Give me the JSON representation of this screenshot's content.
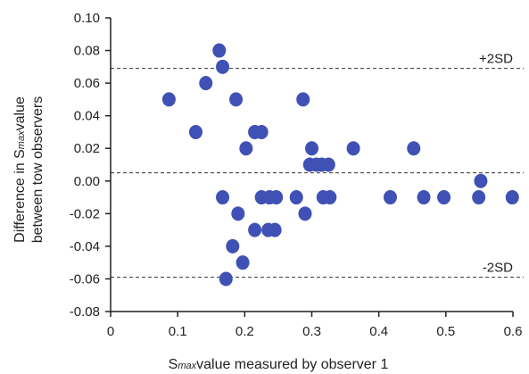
{
  "chart_data": {
    "type": "scatter",
    "title": "",
    "xlabel": {
      "prefix": "S",
      "sub": "max",
      "suffix": "value measured by observer 1"
    },
    "ylabel": {
      "line1_prefix": "Difference in S",
      "line1_sub": "max",
      "line1_suffix": "value",
      "line2": "between tow observers"
    },
    "xlim": [
      0,
      0.6
    ],
    "ylim": [
      -0.08,
      0.1
    ],
    "xticks": [
      "0",
      "0.1",
      "0.2",
      "0.3",
      "0.4",
      "0.5",
      "0.6"
    ],
    "yticks": [
      "0.10",
      "0.08",
      "0.06",
      "0.04",
      "0.02",
      "0.00",
      "-0.02",
      "-0.04",
      "-0.06",
      "-0.08"
    ],
    "marker_color": "#3f51b5",
    "grid": false,
    "reference_lines": [
      {
        "label": "+2SD",
        "y": 0.069
      },
      {
        "label": "",
        "y": 0.005
      },
      {
        "label": "-2SD",
        "y": -0.059
      }
    ],
    "points": [
      {
        "x": 0.087,
        "y": 0.05
      },
      {
        "x": 0.127,
        "y": 0.03
      },
      {
        "x": 0.142,
        "y": 0.06
      },
      {
        "x": 0.162,
        "y": 0.08
      },
      {
        "x": 0.167,
        "y": 0.07
      },
      {
        "x": 0.167,
        "y": -0.01
      },
      {
        "x": 0.172,
        "y": -0.06
      },
      {
        "x": 0.182,
        "y": -0.04
      },
      {
        "x": 0.187,
        "y": 0.05
      },
      {
        "x": 0.19,
        "y": -0.02
      },
      {
        "x": 0.197,
        "y": -0.05
      },
      {
        "x": 0.202,
        "y": 0.02
      },
      {
        "x": 0.215,
        "y": 0.03
      },
      {
        "x": 0.215,
        "y": -0.03
      },
      {
        "x": 0.225,
        "y": 0.03
      },
      {
        "x": 0.225,
        "y": -0.01
      },
      {
        "x": 0.235,
        "y": -0.03
      },
      {
        "x": 0.237,
        "y": -0.01
      },
      {
        "x": 0.245,
        "y": -0.03
      },
      {
        "x": 0.247,
        "y": -0.01
      },
      {
        "x": 0.277,
        "y": -0.01
      },
      {
        "x": 0.287,
        "y": 0.05
      },
      {
        "x": 0.29,
        "y": -0.02
      },
      {
        "x": 0.297,
        "y": 0.01
      },
      {
        "x": 0.3,
        "y": 0.02
      },
      {
        "x": 0.307,
        "y": 0.01
      },
      {
        "x": 0.315,
        "y": 0.01
      },
      {
        "x": 0.317,
        "y": -0.01
      },
      {
        "x": 0.325,
        "y": 0.01
      },
      {
        "x": 0.327,
        "y": -0.01
      },
      {
        "x": 0.362,
        "y": 0.02
      },
      {
        "x": 0.417,
        "y": -0.01
      },
      {
        "x": 0.452,
        "y": 0.02
      },
      {
        "x": 0.467,
        "y": -0.01
      },
      {
        "x": 0.497,
        "y": -0.01
      },
      {
        "x": 0.549,
        "y": -0.01
      },
      {
        "x": 0.552,
        "y": 0.0
      },
      {
        "x": 0.599,
        "y": -0.01
      }
    ]
  }
}
